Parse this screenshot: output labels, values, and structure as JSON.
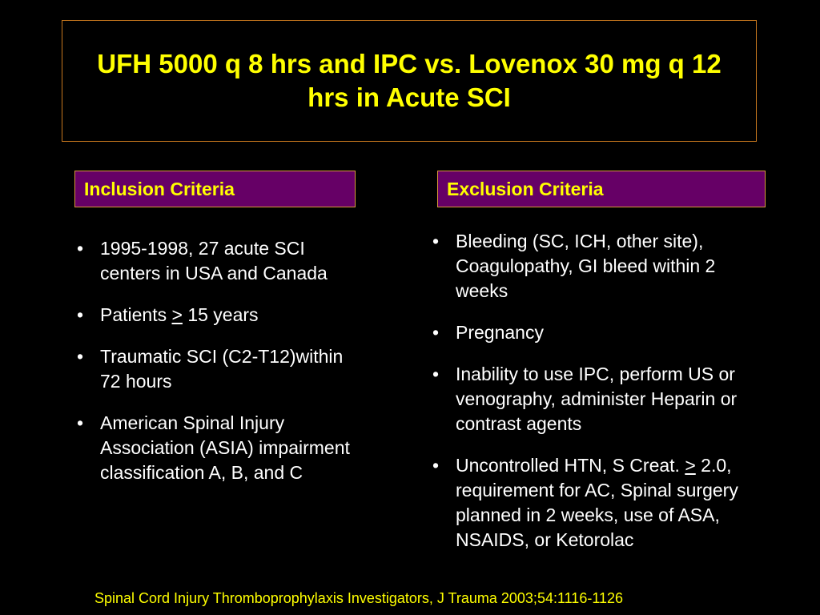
{
  "title": "UFH 5000 q 8 hrs and IPC vs. Lovenox 30 mg q 12 hrs in Acute SCI",
  "inclusion": {
    "header": "Inclusion Criteria",
    "items": [
      {
        "text": "1995-1998, 27 acute SCI centers in USA and Canada"
      },
      {
        "pre": "Patients ",
        "underlined": ">",
        "post": " 15 years"
      },
      {
        "text": "Traumatic SCI (C2-T12)within 72 hours"
      },
      {
        "text": "American Spinal Injury Association (ASIA) impairment classification A, B, and C"
      }
    ]
  },
  "exclusion": {
    "header": "Exclusion Criteria",
    "items": [
      {
        "text": "Bleeding (SC, ICH, other site), Coagulopathy, GI bleed within 2 weeks"
      },
      {
        "text": "Pregnancy"
      },
      {
        "text": "Inability to use IPC, perform US or venography, administer Heparin or contrast agents"
      },
      {
        "pre": "Uncontrolled HTN, S Creat. ",
        "underlined": ">",
        "post": " 2.0, requirement for AC, Spinal surgery planned in 2 weeks, use of ASA, NSAIDS, or Ketorolac"
      }
    ]
  },
  "bullet_glyph": "•",
  "footer": "Spinal Cord Injury Thromboprophylaxis Investigators, J Trauma 2003;54:1116-1126",
  "colors": {
    "background": "#000000",
    "title_text": "#ffff00",
    "header_fill": "#660066",
    "header_border": "#d89a3c",
    "title_border": "#c8781e",
    "body_text": "#ffffff"
  }
}
